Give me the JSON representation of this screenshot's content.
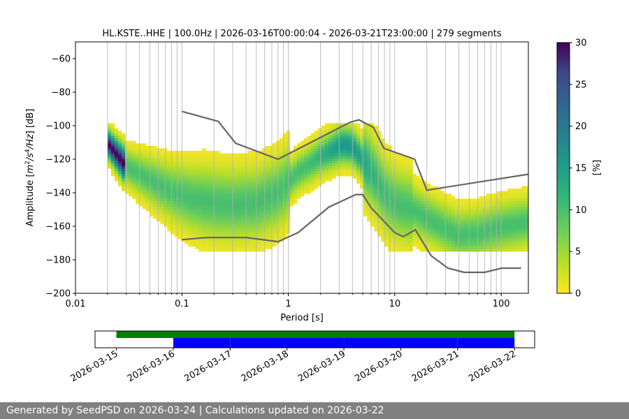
{
  "footer": "Generated by SeedPSD on 2026-03-24 | Calculations updated on 2026-03-22",
  "chart_data": {
    "type": "heatmap",
    "title": "HL.KSTE..HHE | 100.0Hz | 2026-03-16T00:00:04 - 2026-03-21T23:00:00 | 279 segments",
    "xlabel": "Period [s]",
    "ylabel": "Amplitude [m²/s⁴/Hz] [dB]",
    "xscale": "log",
    "xlim": [
      0.01,
      180
    ],
    "ylim": [
      -200,
      -50
    ],
    "xticks": [
      0.01,
      0.1,
      1,
      10,
      100
    ],
    "xtick_labels": [
      "0.01",
      "0.1",
      "1",
      "10",
      "100"
    ],
    "yticks": [
      -200,
      -180,
      -160,
      -140,
      -120,
      -100,
      -80,
      -60
    ],
    "ytick_labels": [
      "−200",
      "−180",
      "−160",
      "−140",
      "−120",
      "−100",
      "−80",
      "−60"
    ],
    "grid": "vertical",
    "colorbar": {
      "label": "[%]",
      "range": [
        0,
        30
      ],
      "ticks": [
        0,
        5,
        10,
        15,
        20,
        25,
        30
      ],
      "colormap": "viridis_r"
    },
    "nhnm": {
      "name": "NHNM",
      "color": "#666666",
      "period": [
        0.1,
        0.22,
        0.32,
        0.8,
        3.8,
        4.6,
        6.3,
        7.9,
        15.4,
        20,
        354.8
      ],
      "db": [
        -91.5,
        -97.4,
        -110.5,
        -120,
        -98,
        -96.5,
        -101,
        -113.5,
        -120,
        -138.5,
        -126
      ]
    },
    "nlnm": {
      "name": "NLNM",
      "color": "#666666",
      "period": [
        0.1,
        0.17,
        0.4,
        0.8,
        1.24,
        2.4,
        4.3,
        5,
        6,
        10,
        12,
        15.6,
        21.9,
        31.6,
        45,
        70,
        101,
        154
      ],
      "db": [
        -168,
        -166.7,
        -166.7,
        -169.2,
        -163.7,
        -148.6,
        -141.1,
        -141.1,
        -149,
        -163.8,
        -166.2,
        -162.1,
        -177.5,
        -185,
        -187.5,
        -187.5,
        -185,
        -185
      ]
    },
    "mode_curve": {
      "period": [
        0.02,
        0.03,
        0.05,
        0.08,
        0.12,
        0.2,
        0.3,
        0.5,
        0.8,
        1.2,
        2,
        3.2,
        4,
        5,
        6.5,
        8,
        10,
        15,
        20,
        30,
        40,
        60,
        100,
        180
      ],
      "db": [
        -111,
        -125,
        -133,
        -140,
        -144,
        -147,
        -148,
        -147,
        -141,
        -129,
        -119,
        -112,
        -113,
        -121,
        -131,
        -141,
        -147,
        -151,
        -156,
        -162,
        -166,
        -165,
        -161,
        -158
      ]
    },
    "data_availability": {
      "date_ticks": [
        "2026-03-15",
        "2026-03-16",
        "2026-03-17",
        "2026-03-18",
        "2026-03-19",
        "2026-03-20",
        "2026-03-21",
        "2026-03-22"
      ],
      "green_range": [
        "2026-03-15 00:00",
        "2026-03-22 00:00"
      ],
      "blue_segments": [
        [
          "2026-03-16 00:00",
          "2026-03-16 23:59"
        ],
        [
          "2026-03-17 00:01",
          "2026-03-18 23:59"
        ],
        [
          "2026-03-19 00:01",
          "2026-03-20 23:59"
        ],
        [
          "2026-03-21 00:01",
          "2026-03-22 00:00"
        ]
      ],
      "green_color": "#008000",
      "blue_color": "#0000ff"
    }
  }
}
